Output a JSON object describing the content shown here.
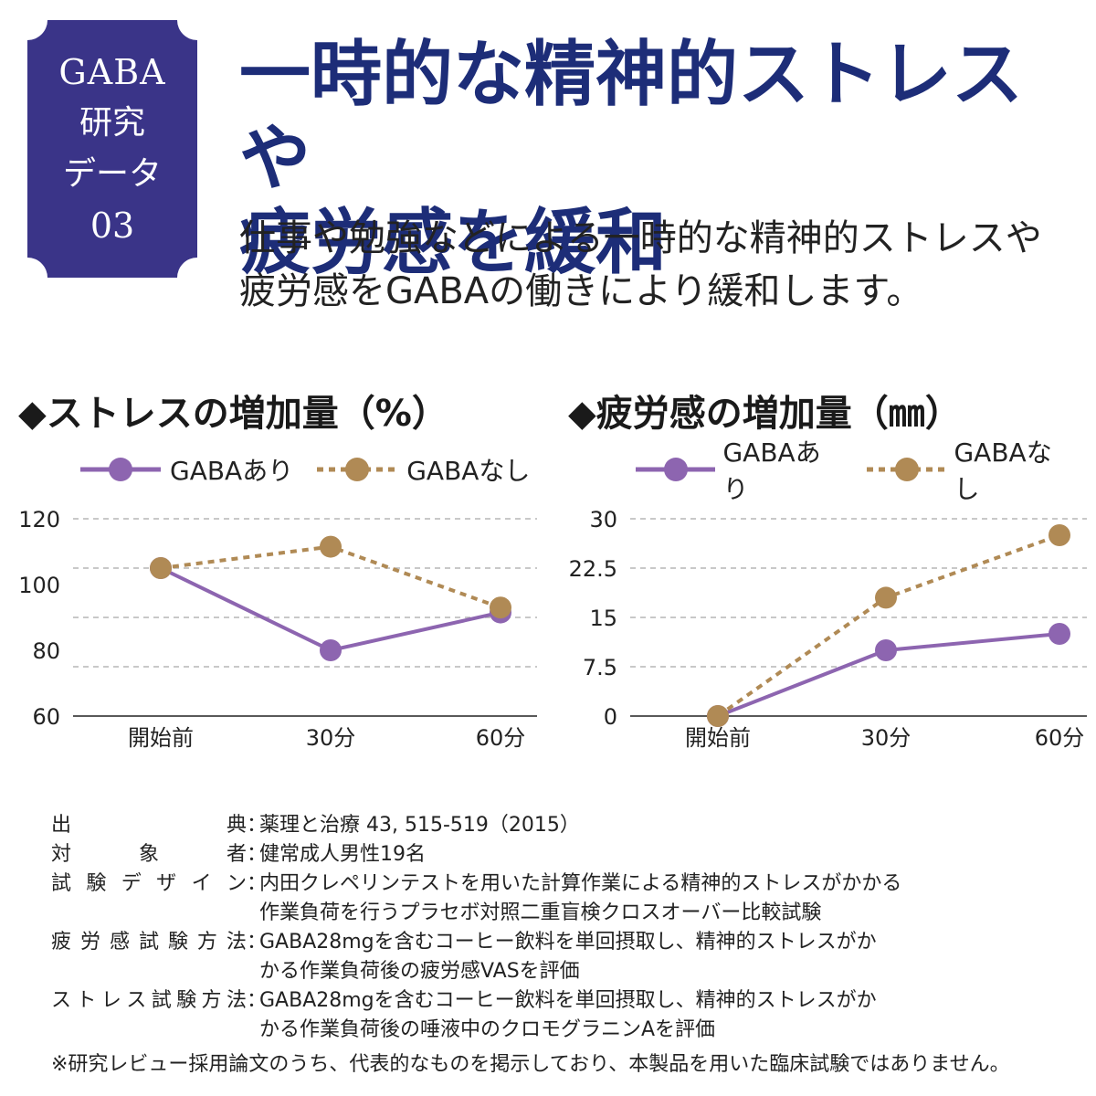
{
  "badge": {
    "line1": "GABA",
    "line2": "研究",
    "line3": "データ",
    "line4": "03",
    "color": "#3a3488"
  },
  "headline": {
    "line1": "一時的な精神的ストレスや",
    "line2": "疲労感を緩和"
  },
  "subtitle": {
    "line1": "仕事や勉強などによる一時的な精神的ストレスや",
    "line2": "疲労感をGABAの働きにより緩和します。"
  },
  "legend": {
    "with": "GABAあり",
    "without": "GABAなし"
  },
  "colors": {
    "with": "#8d65b0",
    "without": "#b08a55",
    "grid": "#b5b5b5",
    "navy": "#1d2d78"
  },
  "chart_data": [
    {
      "type": "line",
      "title": "◆ストレスの増加量（%）",
      "categories": [
        "開始前",
        "30分",
        "60分"
      ],
      "ylim": [
        60,
        120
      ],
      "yticks": [
        "120",
        "100",
        "80",
        "60"
      ],
      "ytick_values": [
        120,
        100,
        80,
        60
      ],
      "grid_values": [
        120,
        105,
        90,
        75
      ],
      "series": [
        {
          "name": "GABAあり",
          "values": [
            105,
            80,
            91.5
          ]
        },
        {
          "name": "GABAなし",
          "values": [
            105,
            111.5,
            93
          ]
        }
      ],
      "grid": true,
      "legend": "top"
    },
    {
      "type": "line",
      "title": "◆疲労感の増加量（㎜）",
      "categories": [
        "開始前",
        "30分",
        "60分"
      ],
      "ylim": [
        0,
        30
      ],
      "yticks": [
        "30",
        "22.5",
        "15",
        "7.5",
        "0"
      ],
      "ytick_values": [
        30,
        22.5,
        15,
        7.5,
        0
      ],
      "grid_values": [
        30,
        22.5,
        15,
        7.5
      ],
      "series": [
        {
          "name": "GABAあり",
          "values": [
            0,
            10,
            12.5
          ]
        },
        {
          "name": "GABAなし",
          "values": [
            0,
            18,
            27.5
          ]
        }
      ],
      "grid": true,
      "legend": "top"
    }
  ],
  "notes": [
    {
      "label": [
        "出",
        "典"
      ],
      "lines": [
        "薬理と治療 43, 515-519（2015）"
      ]
    },
    {
      "label": [
        "対",
        "象",
        "者"
      ],
      "lines": [
        "健常成人男性19名"
      ]
    },
    {
      "label": [
        "試",
        "験",
        "デ",
        "ザ",
        "イ",
        "ン"
      ],
      "lines": [
        "内田クレペリンテストを用いた計算作業による精神的ストレスがかかる",
        "作業負荷を行うプラセボ対照二重盲検クロスオーバー比較試験"
      ]
    },
    {
      "label": [
        "疲",
        "労",
        "感",
        "試",
        "験",
        "方",
        "法"
      ],
      "lines": [
        "GABA28mgを含むコーヒー飲料を単回摂取し、精神的ストレスがか",
        "かる作業負荷後の疲労感VASを評価"
      ]
    },
    {
      "label": [
        "ス",
        "ト",
        "レ",
        "ス",
        "試",
        "験",
        "方",
        "法"
      ],
      "lines": [
        "GABA28mgを含むコーヒー飲料を単回摂取し、精神的ストレスがか",
        "かる作業負荷後の唾液中のクロモグラニンAを評価"
      ]
    }
  ],
  "disclaimer": "※研究レビュー採用論文のうち、代表的なものを掲示しており、本製品を用いた臨床試験ではありません。"
}
